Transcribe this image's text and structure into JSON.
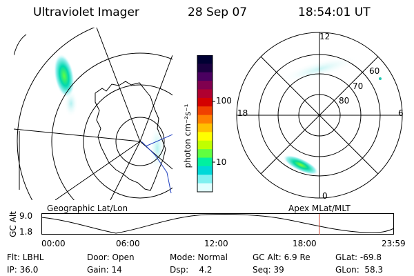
{
  "header": {
    "title": "Ultraviolet Imager",
    "date": "28 Sep 07",
    "time": "18:54:01 UT"
  },
  "left_panel": {
    "caption": "Geographic Lat/Lon"
  },
  "right_panel": {
    "caption": "Apex MLat/MLT",
    "mlt_labels": {
      "top": "12",
      "left": "18",
      "right": "6",
      "bottom": "0"
    },
    "lat_labels": [
      "60",
      "70",
      "80"
    ]
  },
  "colorbar": {
    "unit_label": "photon cm⁻²s⁻¹",
    "tick_labels": [
      "100",
      "10"
    ],
    "colors": [
      "#000033",
      "#1a0040",
      "#4a0060",
      "#80004f",
      "#b00030",
      "#d40000",
      "#f04000",
      "#ff8000",
      "#ffc000",
      "#ffff00",
      "#c0ff00",
      "#60ff40",
      "#00f0a0",
      "#00d8d8",
      "#80f0f0",
      "#e0ffff"
    ]
  },
  "altitude_plot": {
    "axis_label": "GC Alt",
    "y_ticks": [
      "9.0",
      "1.8"
    ],
    "x_ticks": [
      "00:00",
      "06:00",
      "12:00",
      "18:00",
      "23:59"
    ],
    "marker_time_fraction": 0.788,
    "marker_color": "#c83c28"
  },
  "footer": {
    "row1": [
      "Flt: LBHL",
      "Door: Open",
      "Mode: Normal",
      "GC Alt: 6.9 Re",
      "GLat: -69.8"
    ],
    "row2": [
      "IP: 36.0",
      "Gain: 14",
      "Dsp:    4.2",
      "Seq: 39",
      "GLon:  58.3"
    ]
  }
}
